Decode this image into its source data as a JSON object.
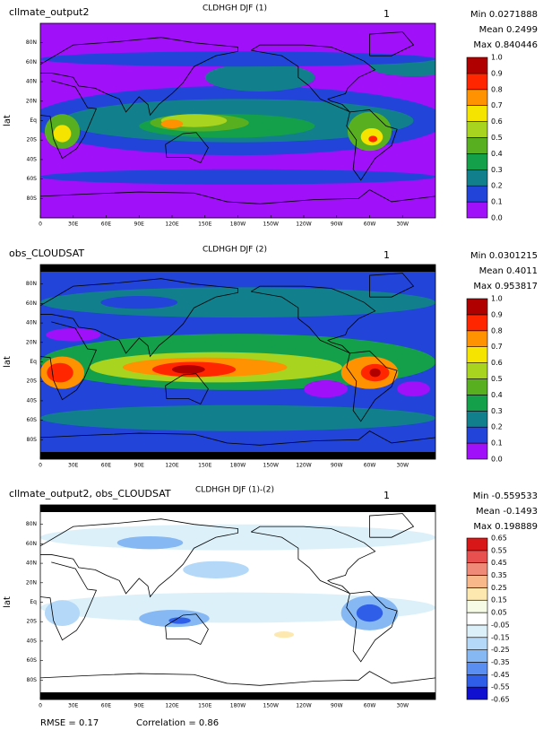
{
  "panels": [
    {
      "left_title": "cllmate_output2",
      "center_title": "CLDHGH DJF (1)",
      "page_number": "1",
      "stats": [
        "Min 0.0271888",
        "Mean 0.2499",
        "Max 0.840446"
      ],
      "y_label": "lat",
      "lat_labels": [
        "80N",
        "60N",
        "40N",
        "20N",
        "Eq",
        "20S",
        "40S",
        "60S",
        "80S"
      ],
      "lon_labels": [
        "0",
        "30E",
        "60E",
        "90E",
        "120E",
        "150E",
        "180W",
        "150W",
        "120W",
        "90W",
        "60W",
        "30W"
      ],
      "colorbar": {
        "labels": [
          "0.0",
          "0.1",
          "0.2",
          "0.3",
          "0.4",
          "0.5",
          "0.6",
          "0.7",
          "0.8",
          "0.9",
          "1.0"
        ],
        "colors": [
          "#a010f8",
          "#2244d8",
          "#12808c",
          "#14a04a",
          "#58b020",
          "#a8d420",
          "#f4e400",
          "#ff9200",
          "#ff2600",
          "#b00000"
        ]
      }
    },
    {
      "left_title": "obs_CLOUDSAT",
      "center_title": "CLDHGH DJF (2)",
      "page_number": "1",
      "stats": [
        "Min 0.0301215",
        "Mean 0.4011",
        "Max 0.953817"
      ],
      "y_label": "lat",
      "lat_labels": [
        "80N",
        "60N",
        "40N",
        "20N",
        "Eq",
        "20S",
        "40S",
        "60S",
        "80S"
      ],
      "lon_labels": [
        "0",
        "30E",
        "60E",
        "90E",
        "120E",
        "150E",
        "180W",
        "150W",
        "120W",
        "90W",
        "60W",
        "30W"
      ],
      "colorbar": {
        "labels": [
          "0.0",
          "0.1",
          "0.2",
          "0.3",
          "0.4",
          "0.5",
          "0.6",
          "0.7",
          "0.8",
          "0.9",
          "1.0"
        ],
        "colors": [
          "#a010f8",
          "#2244d8",
          "#12808c",
          "#14a04a",
          "#58b020",
          "#a8d420",
          "#f4e400",
          "#ff9200",
          "#ff2600",
          "#b00000"
        ]
      }
    },
    {
      "left_title": "cllmate_output2, obs_CLOUDSAT",
      "center_title": "CLDHGH DJF (1)-(2)",
      "page_number": "1",
      "stats": [
        "Min -0.559533",
        "Mean -0.1493",
        "Max 0.198889"
      ],
      "y_label": "lat",
      "lat_labels": [
        "80N",
        "60N",
        "40N",
        "20N",
        "Eq",
        "20S",
        "40S",
        "60S",
        "80S"
      ],
      "lon_labels": [
        "0",
        "30E",
        "60E",
        "90E",
        "120E",
        "150E",
        "180W",
        "150W",
        "120W",
        "90W",
        "60W",
        "30W"
      ],
      "colorbar": {
        "labels": [
          "-0.65",
          "-0.55",
          "-0.45",
          "-0.35",
          "-0.25",
          "-0.15",
          "-0.05",
          "0.05",
          "0.15",
          "0.25",
          "0.35",
          "0.45",
          "0.55",
          "0.65"
        ],
        "colors": [
          "#1010d0",
          "#2f5fe8",
          "#5a8ef0",
          "#86b8f4",
          "#b4d8f8",
          "#dcf0fa",
          "#ffffff",
          "#f6fbe6",
          "#fde8b0",
          "#f8b88a",
          "#f08a78",
          "#e85050",
          "#d81818"
        ]
      }
    }
  ],
  "footer": {
    "rmse": "RMSE = 0.17",
    "correlation": "Correlation = 0.86"
  }
}
